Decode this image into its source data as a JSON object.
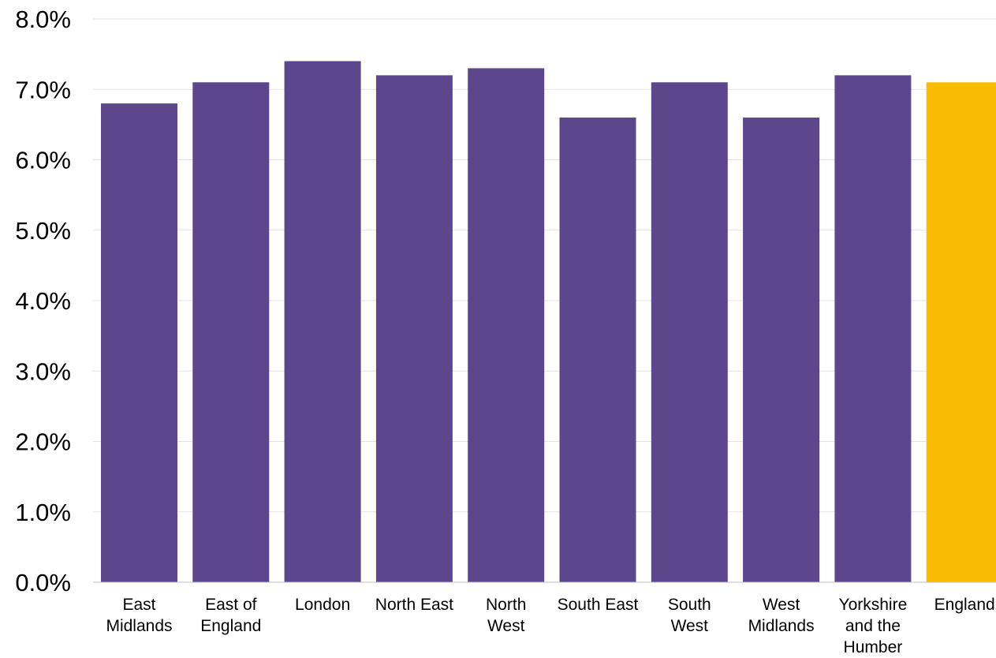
{
  "chart_data": {
    "type": "bar",
    "title": "",
    "xlabel": "",
    "ylabel": "",
    "ylim": [
      0,
      8
    ],
    "y_tick_values": [
      0,
      1,
      2,
      3,
      4,
      5,
      6,
      7,
      8
    ],
    "y_tick_labels": [
      "0.0%",
      "1.0%",
      "2.0%",
      "3.0%",
      "4.0%",
      "5.0%",
      "6.0%",
      "7.0%",
      "8.0%"
    ],
    "grid": true,
    "legend": "none",
    "categories": [
      "East Midlands",
      "East of England",
      "London",
      "North East",
      "North West",
      "South East",
      "South West",
      "West Midlands",
      "Yorkshire and the Humber",
      "England"
    ],
    "category_label_lines": [
      [
        "East",
        "Midlands"
      ],
      [
        "East of",
        "England"
      ],
      [
        "London"
      ],
      [
        "North East"
      ],
      [
        "North",
        "West"
      ],
      [
        "South East"
      ],
      [
        "South",
        "West"
      ],
      [
        "West",
        "Midlands"
      ],
      [
        "Yorkshire",
        "and the",
        "Humber"
      ],
      [
        "England"
      ]
    ],
    "values": [
      6.8,
      7.1,
      7.4,
      7.2,
      7.3,
      6.6,
      7.1,
      6.6,
      7.2,
      7.1
    ],
    "colors": {
      "region": "#5c478c",
      "england": "#f8bc00",
      "grid": "#e3e3e3",
      "axis": "#bfbfbf"
    }
  }
}
